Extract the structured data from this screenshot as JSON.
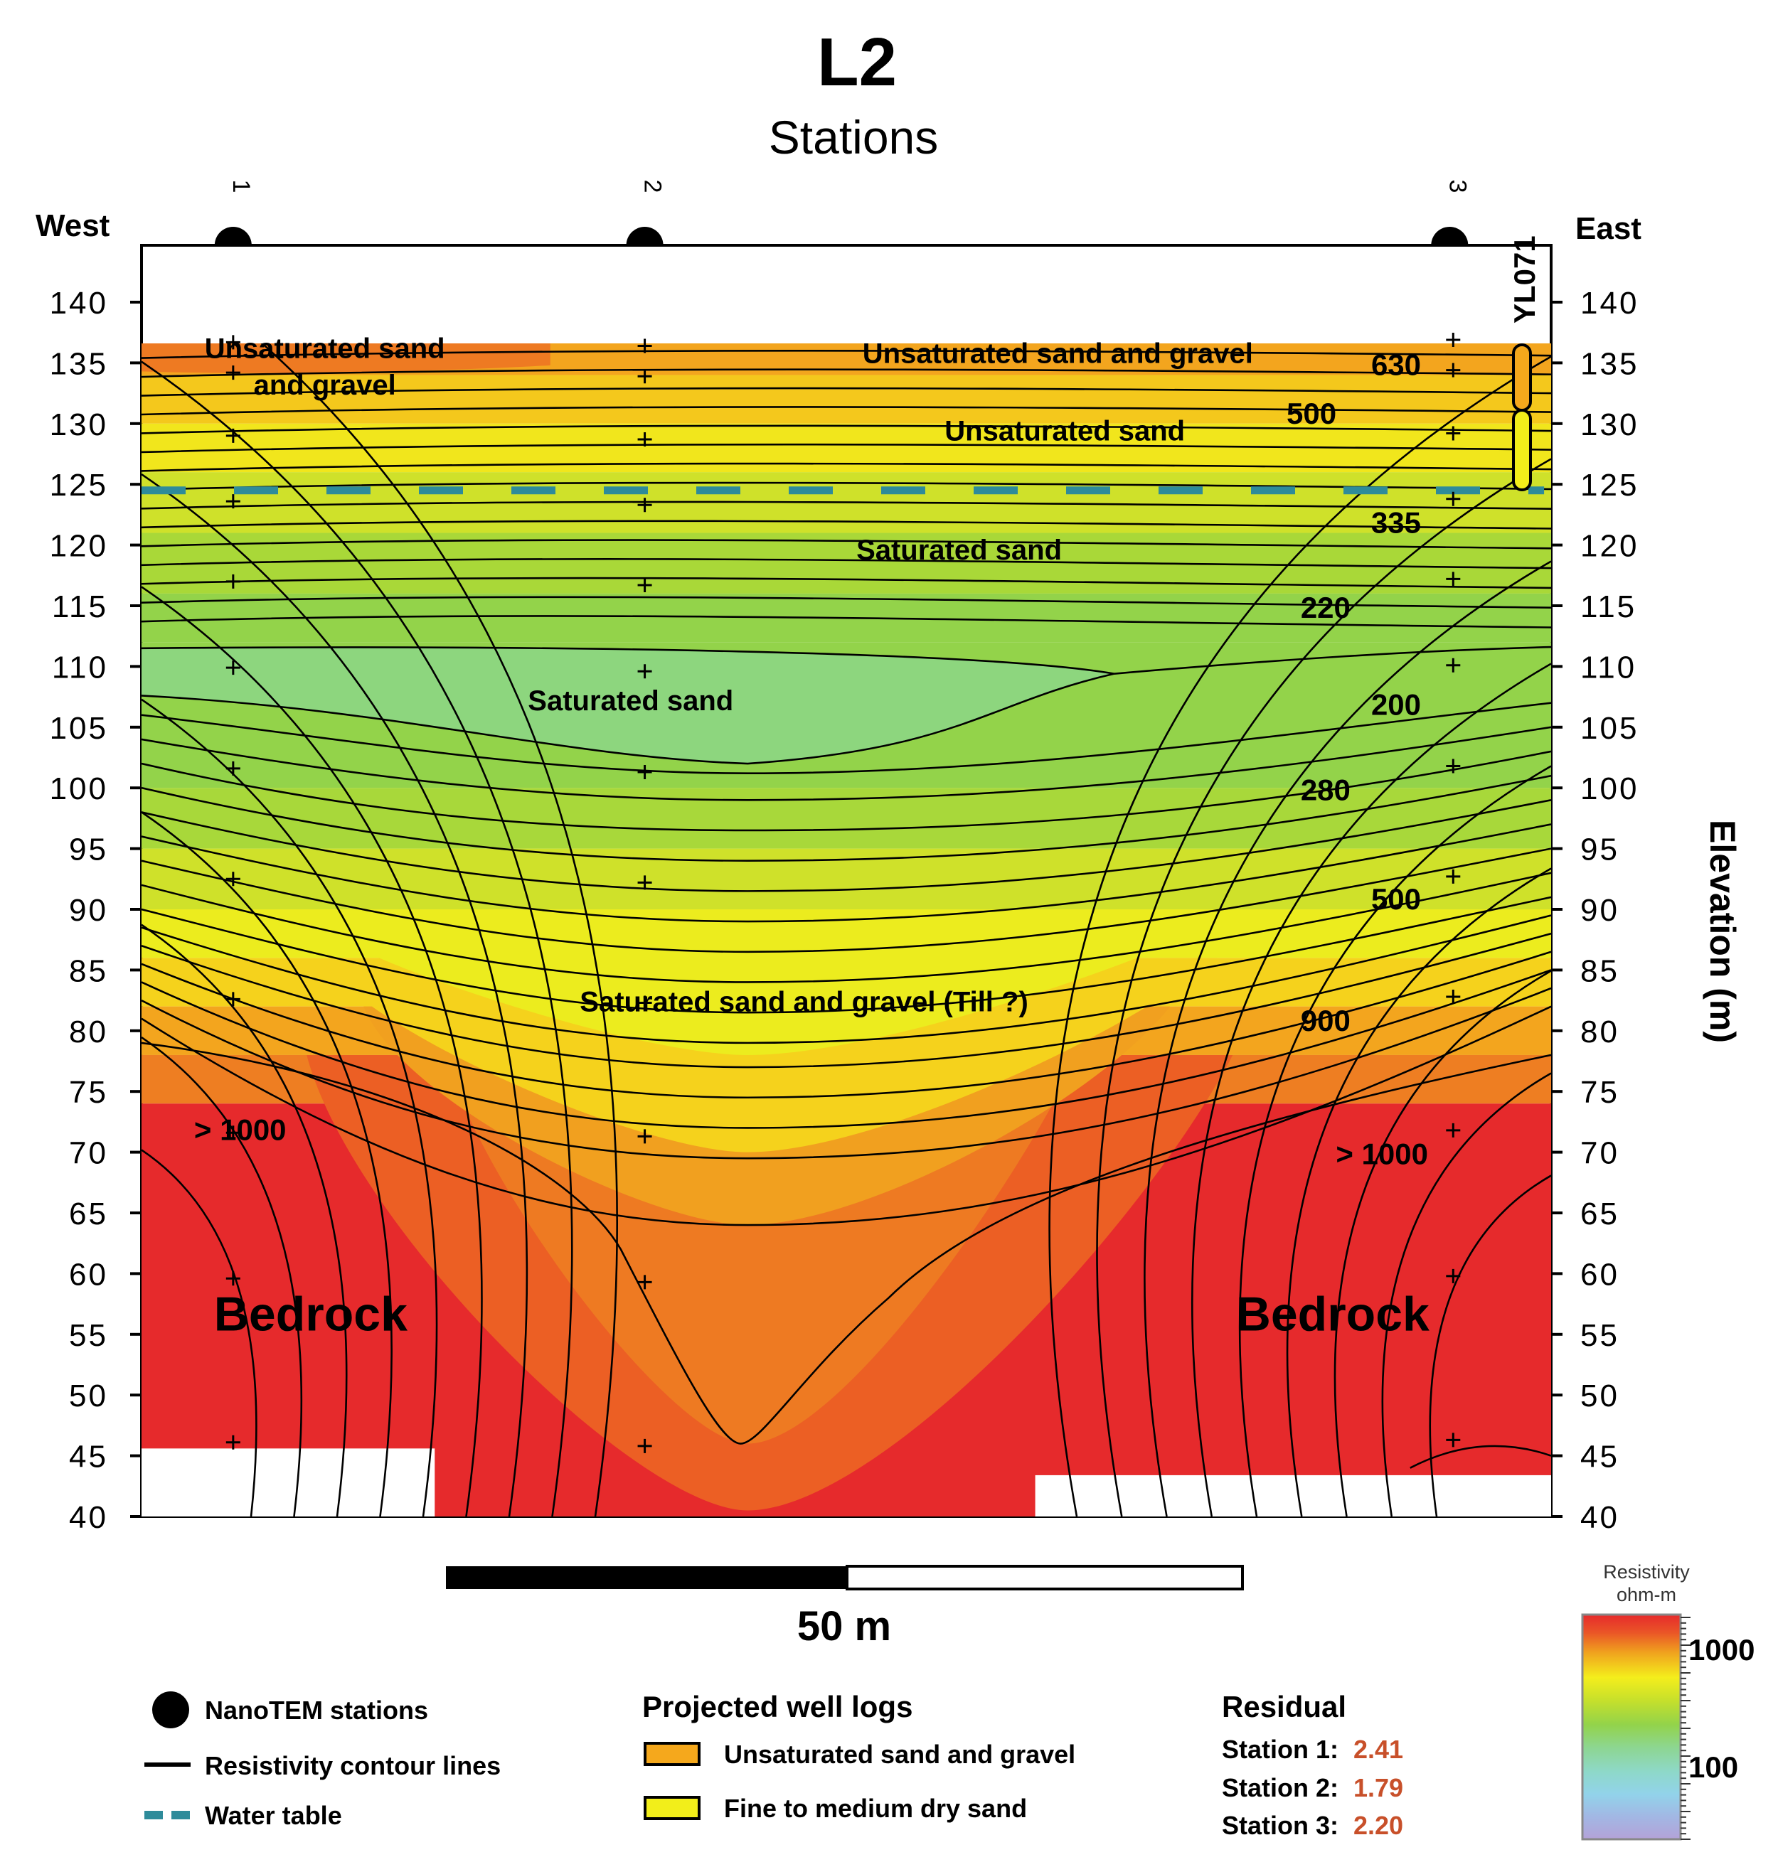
{
  "chart_data": {
    "type": "heatmap",
    "title": "L2",
    "subtitle": "Stations",
    "ylabel": "Elevation (m)",
    "ylim": [
      40,
      140
    ],
    "yticks": [
      "140",
      "135",
      "130",
      "125",
      "120",
      "115",
      "110",
      "105",
      "100",
      "95",
      "90",
      "85",
      "80",
      "75",
      "70",
      "65",
      "60",
      "55",
      "50",
      "45",
      "40"
    ],
    "direction_left": "West",
    "direction_right": "East",
    "stations": [
      {
        "label": "1",
        "x": 0.065
      },
      {
        "label": "2",
        "x": 0.357
      },
      {
        "label": "3",
        "x": 0.928
      }
    ],
    "well_label": "YL071",
    "water_table_elevation": 124.5,
    "contour_labels": [
      {
        "text": "630",
        "x": 0.89,
        "y": 134
      },
      {
        "text": "500",
        "x": 0.83,
        "y": 130
      },
      {
        "text": "335",
        "x": 0.89,
        "y": 121
      },
      {
        "text": "220",
        "x": 0.84,
        "y": 114
      },
      {
        "text": "200",
        "x": 0.89,
        "y": 106
      },
      {
        "text": "280",
        "x": 0.84,
        "y": 99
      },
      {
        "text": "500",
        "x": 0.89,
        "y": 90
      },
      {
        "text": "900",
        "x": 0.84,
        "y": 80
      },
      {
        "text": "> 1000",
        "x": 0.07,
        "y": 71
      },
      {
        "text": "> 1000",
        "x": 0.88,
        "y": 69
      }
    ],
    "zones": [
      {
        "text": "Unsaturated sand",
        "x": 0.13,
        "y": 135.4
      },
      {
        "text": "and gravel",
        "x": 0.13,
        "y": 132.4
      },
      {
        "text": "Unsaturated sand and gravel",
        "x": 0.65,
        "y": 135.0
      },
      {
        "text": "Unsaturated sand",
        "x": 0.655,
        "y": 128.6
      },
      {
        "text": "Saturated sand",
        "x": 0.58,
        "y": 118.8
      },
      {
        "text": "Saturated sand",
        "x": 0.347,
        "y": 106.4
      },
      {
        "text": "Saturated sand and gravel (Till ?)",
        "x": 0.47,
        "y": 81.6
      }
    ],
    "bedrock_labels": [
      {
        "text": "Bedrock",
        "x": 0.12,
        "y": 55.3
      },
      {
        "text": "Bedrock",
        "x": 0.845,
        "y": 55.3
      }
    ],
    "colorbar": {
      "title_line1": "Resistivity",
      "title_line2": "ohm-m",
      "tick_labels": [
        "1000",
        "100"
      ],
      "scale": "log"
    },
    "scale_bar_label": "50 m"
  },
  "legend": {
    "stations_label": "NanoTEM stations",
    "contour_label": "Resistivity contour lines",
    "water_label": "Water table",
    "well_title": "Projected well logs",
    "well_item1": "Unsaturated sand and gravel",
    "well_item2": "Fine to medium dry sand",
    "residual_title": "Residual",
    "residuals": [
      {
        "label": "Station 1:",
        "value": "2.41"
      },
      {
        "label": "Station 2:",
        "value": "1.79"
      },
      {
        "label": "Station 3:",
        "value": "2.20"
      }
    ]
  },
  "colors": {
    "water_table": "#2e8b9a",
    "residual_value": "#c8502a",
    "unsat_gravel": "#f5a81c",
    "dry_sand": "#f2ee1a",
    "bedrock": "#e3282b"
  }
}
